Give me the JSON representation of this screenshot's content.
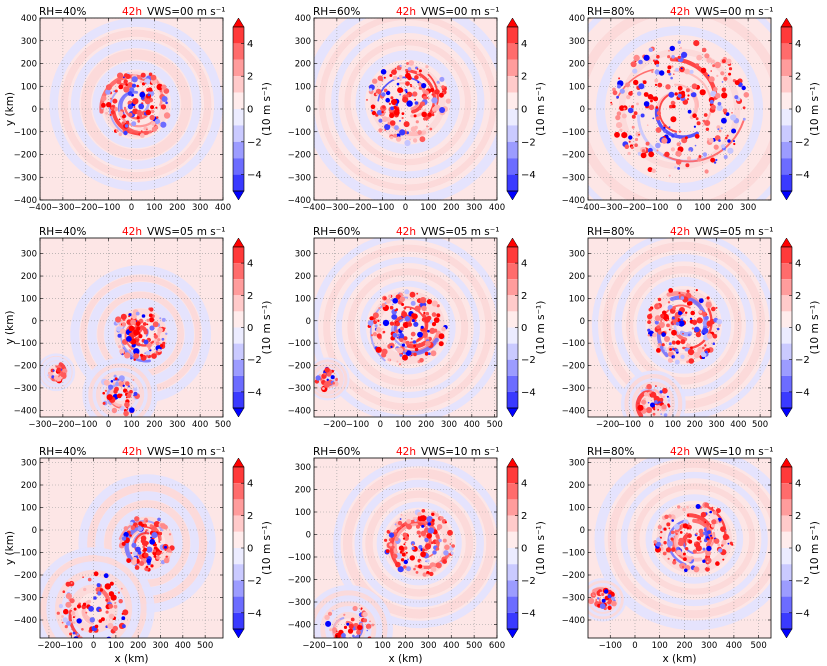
{
  "figure": {
    "colorbar": {
      "ticks": [
        4,
        2,
        0,
        -2,
        -4
      ],
      "tick_labels": [
        "4",
        "2",
        "0",
        "−2",
        "−4"
      ],
      "label": "(10 m s⁻¹)",
      "levels": [
        5,
        4,
        3,
        2,
        1,
        0,
        -1,
        -2,
        -3,
        -4,
        -5
      ],
      "colors": [
        "#ff0000",
        "#ff3a3a",
        "#ff6c6c",
        "#ff9c9c",
        "#ffcaca",
        "#ffecec",
        "#ececff",
        "#cacaff",
        "#9c9cff",
        "#6c6cff",
        "#3a3aff",
        "#0000ff"
      ]
    },
    "xlabel": "x (km)",
    "ylabel": "y (km)"
  },
  "chart_data": [
    {
      "type": "heatmap",
      "rh": "RH=40%",
      "time": "42h",
      "vws": "VWS=00 m s⁻¹",
      "xlim": [
        -400,
        400
      ],
      "ylim": [
        -400,
        400
      ],
      "xticks": [
        -400,
        -300,
        -200,
        -100,
        0,
        100,
        200,
        300,
        400
      ],
      "xtick_labels": [
        "−400",
        "−300",
        "−200",
        "−100",
        "0",
        "100",
        "200",
        "300",
        "400"
      ],
      "yticks": [
        400,
        300,
        200,
        100,
        0,
        -100,
        -200,
        -300,
        -400
      ],
      "ytick_labels": [
        "400",
        "300",
        "200",
        "100",
        "0",
        "−100",
        "−200",
        "−300",
        "−400"
      ],
      "features": [
        {
          "cx": 20,
          "cy": 20,
          "r": 150
        }
      ]
    },
    {
      "type": "heatmap",
      "rh": "RH=60%",
      "time": "42h",
      "vws": "VWS=00 m s⁻¹",
      "xlim": [
        -400,
        400
      ],
      "ylim": [
        -400,
        400
      ],
      "xticks": [
        -400,
        -300,
        -200,
        -100,
        0,
        100,
        200,
        300,
        400
      ],
      "xtick_labels": [
        "−400",
        "−300",
        "−200",
        "−100",
        "0",
        "100",
        "200",
        "300",
        "400"
      ],
      "yticks": [
        400,
        300,
        200,
        100,
        0,
        -100,
        -200,
        -300,
        -400
      ],
      "ytick_labels": [
        "400",
        "300",
        "200",
        "100",
        "0",
        "−100",
        "−200",
        "−300",
        "−400"
      ],
      "features": [
        {
          "cx": 10,
          "cy": 30,
          "r": 180
        }
      ]
    },
    {
      "type": "heatmap",
      "rh": "RH=80%",
      "time": "42h",
      "vws": "VWS=00 m s⁻¹",
      "xlim": [
        -400,
        400
      ],
      "ylim": [
        -400,
        400
      ],
      "xticks": [
        -400,
        -300,
        -200,
        -100,
        0,
        100,
        200,
        300
      ],
      "xtick_labels": [
        "−400",
        "−300",
        "−200",
        "−100",
        "0",
        "100",
        "200",
        "300"
      ],
      "yticks": [
        400,
        300,
        200,
        100,
        0,
        -100,
        -200,
        -300,
        -400
      ],
      "ytick_labels": [
        "400",
        "300",
        "200",
        "100",
        "0",
        "−100",
        "−200",
        "−300",
        "−400"
      ],
      "features": [
        {
          "cx": 0,
          "cy": 0,
          "r": 300
        }
      ]
    },
    {
      "type": "heatmap",
      "rh": "RH=40%",
      "time": "42h",
      "vws": "VWS=05 m s⁻¹",
      "xlim": [
        -300,
        500
      ],
      "ylim": [
        -430,
        370
      ],
      "xticks": [
        -300,
        -200,
        -100,
        0,
        100,
        200,
        300,
        400,
        500
      ],
      "xtick_labels": [
        "−300",
        "−200",
        "−100",
        "0",
        "100",
        "200",
        "300",
        "400",
        "500"
      ],
      "yticks": [
        300,
        200,
        100,
        0,
        -100,
        -200,
        -300,
        -400
      ],
      "ytick_labels": [
        "300",
        "200",
        "100",
        "0",
        "−100",
        "−200",
        "−300",
        "−400"
      ],
      "features": [
        {
          "cx": 140,
          "cy": -60,
          "r": 120
        },
        {
          "cx": -230,
          "cy": -230,
          "r": 40
        },
        {
          "cx": 50,
          "cy": -330,
          "r": 90
        }
      ]
    },
    {
      "type": "heatmap",
      "rh": "RH=60%",
      "time": "42h",
      "vws": "VWS=05 m s⁻¹",
      "xlim": [
        -290,
        510
      ],
      "ylim": [
        -430,
        370
      ],
      "xticks": [
        -200,
        -100,
        0,
        100,
        200,
        300,
        400,
        500
      ],
      "xtick_labels": [
        "−200",
        "−100",
        "0",
        "100",
        "200",
        "300",
        "400",
        "500"
      ],
      "yticks": [
        300,
        200,
        100,
        0,
        -100,
        -200,
        -300,
        -400
      ],
      "ytick_labels": [
        "300",
        "200",
        "100",
        "0",
        "−100",
        "−200",
        "−300",
        "−400"
      ],
      "features": [
        {
          "cx": 120,
          "cy": -30,
          "r": 170
        },
        {
          "cx": -230,
          "cy": -260,
          "r": 50
        }
      ]
    },
    {
      "type": "heatmap",
      "rh": "RH=80%",
      "time": "42h",
      "vws": "VWS=05 m s⁻¹",
      "xlim": [
        -290,
        550
      ],
      "ylim": [
        -430,
        370
      ],
      "xticks": [
        -200,
        -100,
        0,
        100,
        200,
        300,
        400,
        500
      ],
      "xtick_labels": [
        "−200",
        "−100",
        "0",
        "100",
        "200",
        "300",
        "400",
        "500"
      ],
      "yticks": [
        300,
        200,
        100,
        0,
        -100,
        -200,
        -300,
        -400
      ],
      "ytick_labels": [
        "300",
        "200",
        "100",
        "0",
        "−100",
        "−200",
        "−300",
        "−400"
      ],
      "features": [
        {
          "cx": 150,
          "cy": -20,
          "r": 170
        },
        {
          "cx": 10,
          "cy": -370,
          "r": 80
        }
      ]
    },
    {
      "type": "heatmap",
      "rh": "RH=40%",
      "time": "42h",
      "vws": "VWS=10 m s⁻¹",
      "xlim": [
        -240,
        580
      ],
      "ylim": [
        -480,
        320
      ],
      "xticks": [
        -200,
        -100,
        0,
        100,
        200,
        300,
        400,
        500
      ],
      "xtick_labels": [
        "−200",
        "−100",
        "0",
        "100",
        "200",
        "300",
        "400",
        "500"
      ],
      "yticks": [
        300,
        200,
        100,
        0,
        -100,
        -200,
        -300,
        -400
      ],
      "ytick_labels": [
        "300",
        "200",
        "100",
        "0",
        "−100",
        "−200",
        "−300",
        "−400"
      ],
      "features": [
        {
          "cx": 240,
          "cy": -60,
          "r": 120
        },
        {
          "cx": 0,
          "cy": -350,
          "r": 160
        }
      ]
    },
    {
      "type": "heatmap",
      "rh": "RH=60%",
      "time": "42h",
      "vws": "VWS=10 m s⁻¹",
      "xlim": [
        -200,
        600
      ],
      "ylim": [
        -460,
        340
      ],
      "xticks": [
        -200,
        -100,
        0,
        100,
        200,
        300,
        400,
        500,
        600
      ],
      "xtick_labels": [
        "−200",
        "−100",
        "0",
        "100",
        "200",
        "300",
        "400",
        "500",
        "600"
      ],
      "yticks": [
        300,
        200,
        100,
        0,
        -100,
        -200,
        -300,
        -400
      ],
      "ytick_labels": [
        "300",
        "200",
        "100",
        "0",
        "−100",
        "−200",
        "−300",
        "−400"
      ],
      "features": [
        {
          "cx": 260,
          "cy": -40,
          "r": 150
        },
        {
          "cx": -50,
          "cy": -420,
          "r": 110
        }
      ]
    },
    {
      "type": "heatmap",
      "rh": "RH=80%",
      "time": "42h",
      "vws": "VWS=10 m s⁻¹",
      "xlim": [
        -190,
        550
      ],
      "ylim": [
        -480,
        320
      ],
      "xticks": [
        -100,
        0,
        100,
        200,
        300,
        400,
        500
      ],
      "xtick_labels": [
        "−100",
        "0",
        "100",
        "200",
        "300",
        "400",
        "500"
      ],
      "yticks": [
        300,
        200,
        100,
        0,
        -100,
        -200,
        -300,
        -400
      ],
      "ytick_labels": [
        "300",
        "200",
        "100",
        "0",
        "−100",
        "−200",
        "−300",
        "−400"
      ],
      "features": [
        {
          "cx": 240,
          "cy": -40,
          "r": 160
        },
        {
          "cx": -130,
          "cy": -310,
          "r": 50
        }
      ]
    }
  ]
}
